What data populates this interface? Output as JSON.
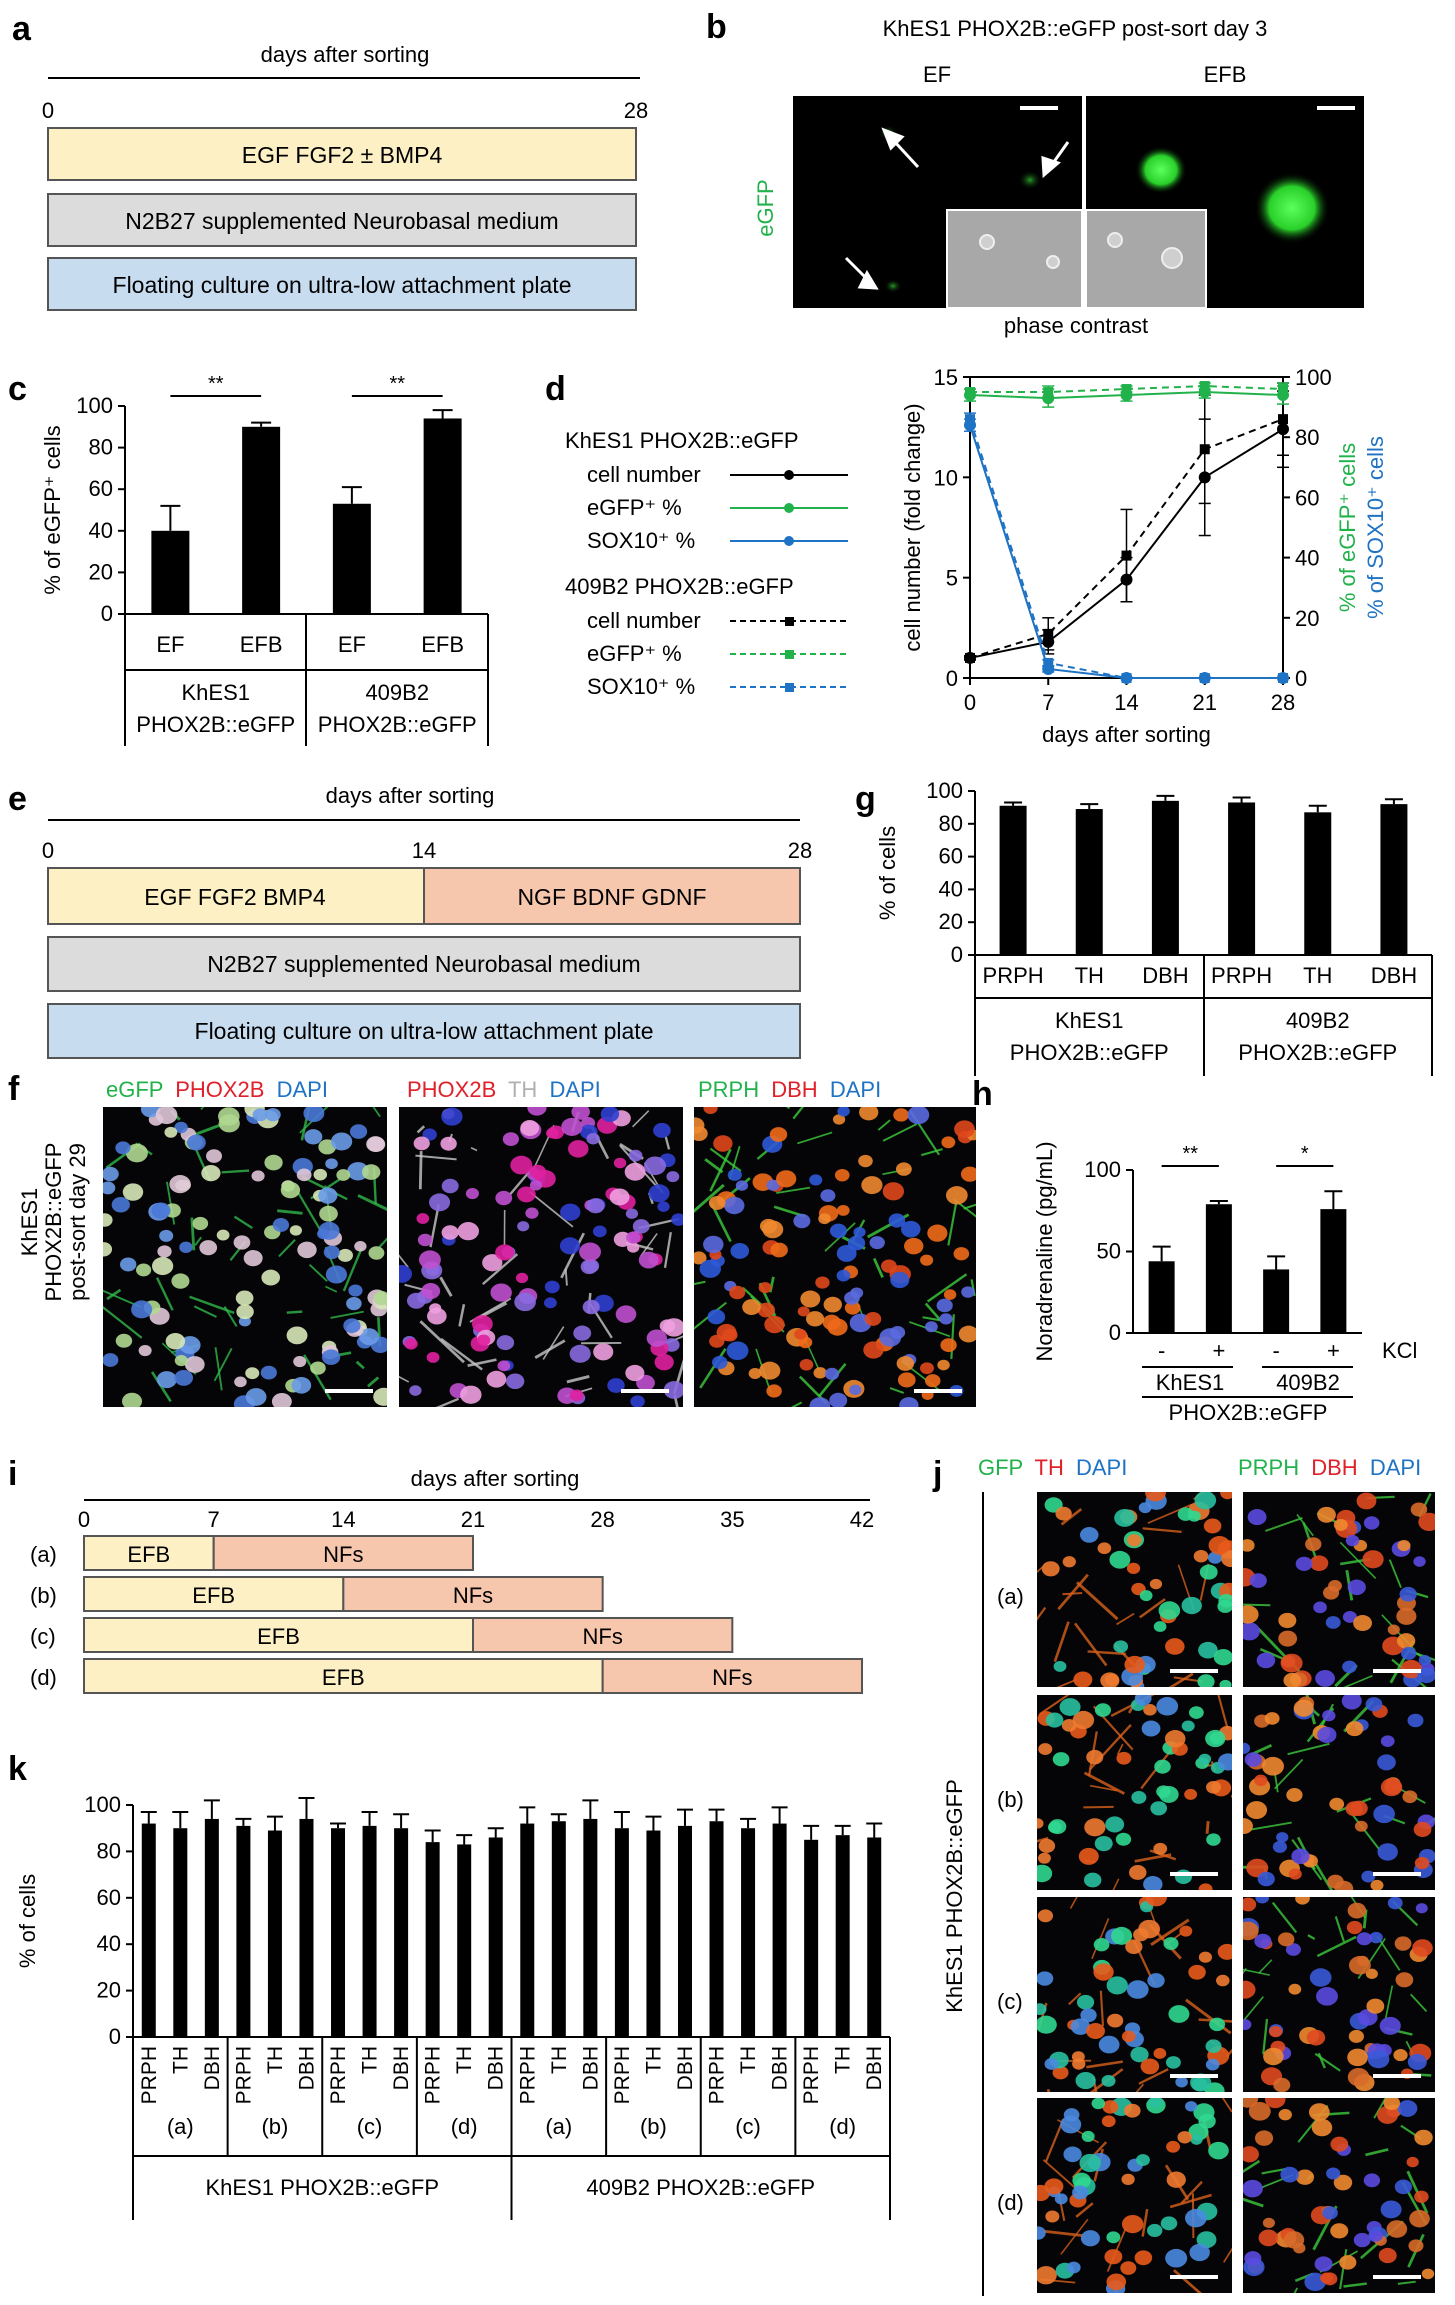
{
  "colors": {
    "yellow": "#fdf0c4",
    "salmon": "#f7c7ad",
    "gray": "#dcdcdc",
    "blue": "#c8dcf0",
    "green": "#22b24c",
    "blue_line": "#1f73c4",
    "red": "#e0202a",
    "white_txt": "#c8c8c8"
  },
  "panel_labels": {
    "a": "a",
    "b": "b",
    "c": "c",
    "d": "d",
    "e": "e",
    "f": "f",
    "g": "g",
    "h": "h",
    "i": "i",
    "j": "j",
    "k": "k"
  },
  "panel_a": {
    "title": "days after sorting",
    "start": "0",
    "end": "28",
    "bar1": "EGF FGF2 ± BMP4",
    "bar2": "N2B27 supplemented Neurobasal medium",
    "bar3": "Floating culture on ultra-low attachment plate"
  },
  "panel_b": {
    "title": "KhES1 PHOX2B::eGFP post-sort day 3",
    "col1": "EF",
    "col2": "EFB",
    "ylabel": "eGFP",
    "caption": "phase contrast"
  },
  "panel_e": {
    "title": "days after sorting",
    "start": "0",
    "mid": "14",
    "end": "28",
    "bar1a": "EGF FGF2 BMP4",
    "bar1b": "NGF BDNF GDNF",
    "bar2": "N2B27 supplemented Neurobasal medium",
    "bar3": "Floating culture on ultra-low attachment plate"
  },
  "panel_f": {
    "side_label_1": "KhES1",
    "side_label_2": "PHOX2B::eGFP",
    "side_label_3": "post-sort day 29",
    "img1": {
      "l1": "eGFP",
      "l2": "PHOX2B",
      "l3": "DAPI"
    },
    "img2": {
      "l1": "PHOX2B",
      "l2": "TH",
      "l3": "DAPI"
    },
    "img3": {
      "l1": "PRPH",
      "l2": "DBH",
      "l3": "DAPI"
    }
  },
  "panel_i": {
    "title": "days after sorting",
    "ticks": [
      "0",
      "7",
      "14",
      "21",
      "28",
      "35",
      "42"
    ],
    "rows": [
      {
        "label": "(a)",
        "a": "EFB",
        "b": "NFs",
        "split": 7,
        "end": 21
      },
      {
        "label": "(b)",
        "a": "EFB",
        "b": "NFs",
        "split": 14,
        "end": 28
      },
      {
        "label": "(c)",
        "a": "EFB",
        "b": "NFs",
        "split": 21,
        "end": 35
      },
      {
        "label": "(d)",
        "a": "EFB",
        "b": "NFs",
        "split": 28,
        "end": 42
      }
    ]
  },
  "panel_j": {
    "side_label": "KhES1 PHOX2B::eGFP",
    "col1": {
      "l1": "GFP",
      "l2": "TH",
      "l3": "DAPI"
    },
    "col2": {
      "l1": "PRPH",
      "l2": "DBH",
      "l3": "DAPI"
    },
    "rows": [
      "(a)",
      "(b)",
      "(c)",
      "(d)"
    ]
  },
  "chart_data": [
    {
      "id": "c",
      "type": "bar",
      "ylabel": "% of eGFP⁺ cells",
      "ylim": [
        0,
        100
      ],
      "yticks": [
        0,
        20,
        40,
        60,
        80,
        100
      ],
      "categories": [
        "EF",
        "EFB",
        "EF",
        "EFB"
      ],
      "values": [
        40,
        90,
        53,
        94
      ],
      "errors": [
        12,
        2,
        8,
        4
      ],
      "groups": [
        {
          "line1": "KhES1",
          "line2": "PHOX2B::eGFP"
        },
        {
          "line1": "409B2",
          "line2": "PHOX2B::eGFP"
        }
      ],
      "significance": [
        "**",
        "**"
      ]
    },
    {
      "id": "d",
      "type": "line",
      "xlabel": "days after sorting",
      "ylabel": "cell number (fold change)",
      "y2label_green": "% of eGFP⁺ cells",
      "y2label_blue": "% of SOX10⁺ cells",
      "x": [
        0,
        7,
        14,
        21,
        28
      ],
      "ylim": [
        0,
        15
      ],
      "yticks": [
        0,
        5,
        10,
        15
      ],
      "y2lim": [
        0,
        100
      ],
      "y2ticks": [
        0,
        20,
        40,
        60,
        80,
        100
      ],
      "legend": {
        "group1": "KhES1 PHOX2B::eGFP",
        "group2": "409B2 PHOX2B::eGFP",
        "cell": "cell number",
        "egfp": "eGFP⁺ %",
        "sox": "SOX10⁺ %"
      },
      "series": [
        {
          "name": "KhES1 cell number",
          "axis": "left",
          "color": "#000000",
          "dash": false,
          "marker": "circle",
          "values": [
            1,
            1.8,
            4.9,
            10,
            12.4
          ],
          "errors": [
            0.1,
            0.6,
            1.1,
            2.9,
            1.9
          ]
        },
        {
          "name": "409B2 cell number",
          "axis": "left",
          "color": "#000000",
          "dash": true,
          "marker": "square",
          "values": [
            1,
            2.2,
            6.1,
            11.4,
            12.9
          ],
          "errors": [
            0.1,
            0.8,
            2.3,
            2.7,
            1.8
          ]
        },
        {
          "name": "KhES1 eGFP+ %",
          "axis": "right",
          "color": "#22b24c",
          "dash": false,
          "marker": "circle",
          "values": [
            94,
            93,
            94,
            95,
            94
          ],
          "errors": [
            2,
            3,
            2,
            2,
            3
          ]
        },
        {
          "name": "409B2 eGFP+ %",
          "axis": "right",
          "color": "#22b24c",
          "dash": true,
          "marker": "square",
          "values": [
            95,
            95,
            96,
            97,
            96
          ],
          "errors": [
            1,
            2,
            1,
            1,
            2
          ]
        },
        {
          "name": "KhES1 SOX10+ %",
          "axis": "right",
          "color": "#1f73c4",
          "dash": false,
          "marker": "circle",
          "values": [
            84,
            3,
            0,
            0,
            0
          ],
          "errors": [
            2,
            1,
            0,
            0,
            0
          ]
        },
        {
          "name": "409B2 SOX10+ %",
          "axis": "right",
          "color": "#1f73c4",
          "dash": true,
          "marker": "square",
          "values": [
            86,
            5,
            0,
            0,
            0
          ],
          "errors": [
            2,
            1,
            0,
            0,
            0
          ]
        }
      ]
    },
    {
      "id": "g",
      "type": "bar",
      "ylabel": "% of cells",
      "ylim": [
        0,
        100
      ],
      "yticks": [
        0,
        20,
        40,
        60,
        80,
        100
      ],
      "categories": [
        "PRPH",
        "TH",
        "DBH",
        "PRPH",
        "TH",
        "DBH"
      ],
      "values": [
        91,
        89,
        94,
        93,
        87,
        92
      ],
      "errors": [
        2,
        3,
        3,
        3,
        4,
        3
      ],
      "groups": [
        {
          "line1": "KhES1",
          "line2": "PHOX2B::eGFP"
        },
        {
          "line1": "409B2",
          "line2": "PHOX2B::eGFP"
        }
      ]
    },
    {
      "id": "h",
      "type": "bar",
      "ylabel": "Noradrenaline (pg/mL)",
      "ylim": [
        0,
        100
      ],
      "yticks": [
        0,
        50,
        100
      ],
      "categories": [
        "-",
        "+",
        "-",
        "+"
      ],
      "cat_suffix": "KCl",
      "values": [
        44,
        79,
        39,
        76
      ],
      "errors": [
        9,
        2,
        8,
        11
      ],
      "groups": [
        {
          "line1": "KhES1"
        },
        {
          "line1": "409B2"
        }
      ],
      "footer": "PHOX2B::eGFP",
      "significance": [
        "**",
        "*"
      ]
    },
    {
      "id": "k",
      "type": "bar",
      "ylabel": "% of cells",
      "ylim": [
        0,
        100
      ],
      "yticks": [
        0,
        20,
        40,
        60,
        80,
        100
      ],
      "categories": [
        "PRPH",
        "TH",
        "DBH",
        "PRPH",
        "TH",
        "DBH",
        "PRPH",
        "TH",
        "DBH",
        "PRPH",
        "TH",
        "DBH",
        "PRPH",
        "TH",
        "DBH",
        "PRPH",
        "TH",
        "DBH",
        "PRPH",
        "TH",
        "DBH",
        "PRPH",
        "TH",
        "DBH"
      ],
      "values": [
        92,
        90,
        94,
        91,
        89,
        94,
        90,
        91,
        90,
        84,
        83,
        86,
        92,
        93,
        94,
        90,
        89,
        91,
        93,
        90,
        92,
        85,
        87,
        86
      ],
      "errors": [
        5,
        7,
        8,
        3,
        6,
        9,
        2,
        6,
        6,
        5,
        4,
        4,
        7,
        3,
        8,
        7,
        6,
        7,
        5,
        4,
        7,
        6,
        4,
        6
      ],
      "subgroups": [
        "(a)",
        "(b)",
        "(c)",
        "(d)",
        "(a)",
        "(b)",
        "(c)",
        "(d)"
      ],
      "groups": [
        {
          "line1": "KhES1 PHOX2B::eGFP"
        },
        {
          "line1": "409B2 PHOX2B::eGFP"
        }
      ]
    }
  ]
}
